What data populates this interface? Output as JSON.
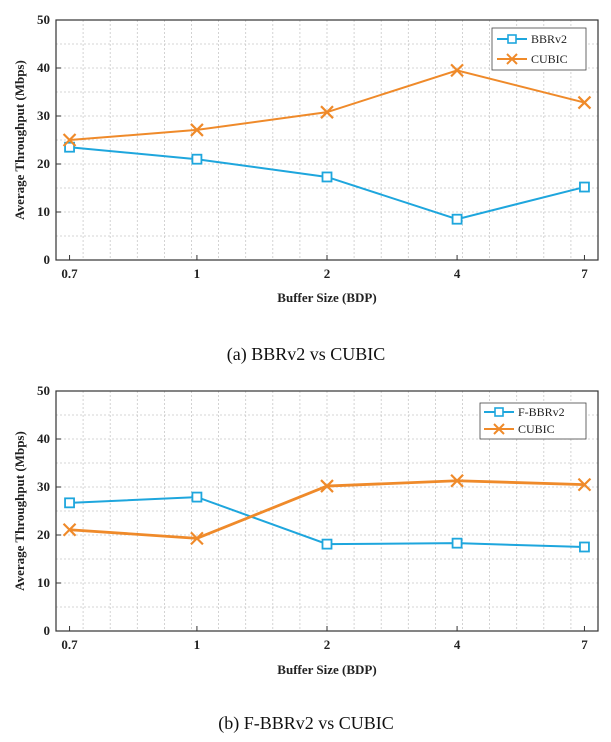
{
  "colors": {
    "bbr": "#1ea6dd",
    "cubic": "#ef8a2a"
  },
  "chart_data": [
    {
      "type": "line",
      "caption": "(a)  BBRv2  vs  CUBIC",
      "xlabel": "Buffer Size (BDP)",
      "ylabel": "Average Throughput (Mbps)",
      "categories": [
        "0.7",
        "1",
        "2",
        "4",
        "7"
      ],
      "ylim": [
        0,
        50
      ],
      "yticks": [
        "0",
        "10",
        "20",
        "30",
        "40",
        "50"
      ],
      "grid": true,
      "legend_position": "top-right",
      "series": [
        {
          "name": "BBRv2",
          "marker": "square",
          "values": [
            23.5,
            21,
            17.3,
            8.5,
            15.2
          ]
        },
        {
          "name": "CUBIC",
          "marker": "x",
          "values": [
            25,
            27.1,
            30.8,
            39.5,
            32.8
          ]
        }
      ]
    },
    {
      "type": "line",
      "caption": "(b)  F-BBRv2  vs  CUBIC",
      "xlabel": "Buffer Size (BDP)",
      "ylabel": "Average Throughput (Mbps)",
      "categories": [
        "0.7",
        "1",
        "2",
        "4",
        "7"
      ],
      "ylim": [
        0,
        50
      ],
      "yticks": [
        "0",
        "10",
        "20",
        "30",
        "40",
        "50"
      ],
      "grid": true,
      "legend_position": "top-right",
      "series": [
        {
          "name": "F-BBRv2",
          "marker": "square",
          "values": [
            26.7,
            27.9,
            18.1,
            18.3,
            17.5
          ]
        },
        {
          "name": "CUBIC",
          "marker": "x",
          "values": [
            21.1,
            19.3,
            30.2,
            31.3,
            30.5
          ]
        }
      ]
    }
  ]
}
